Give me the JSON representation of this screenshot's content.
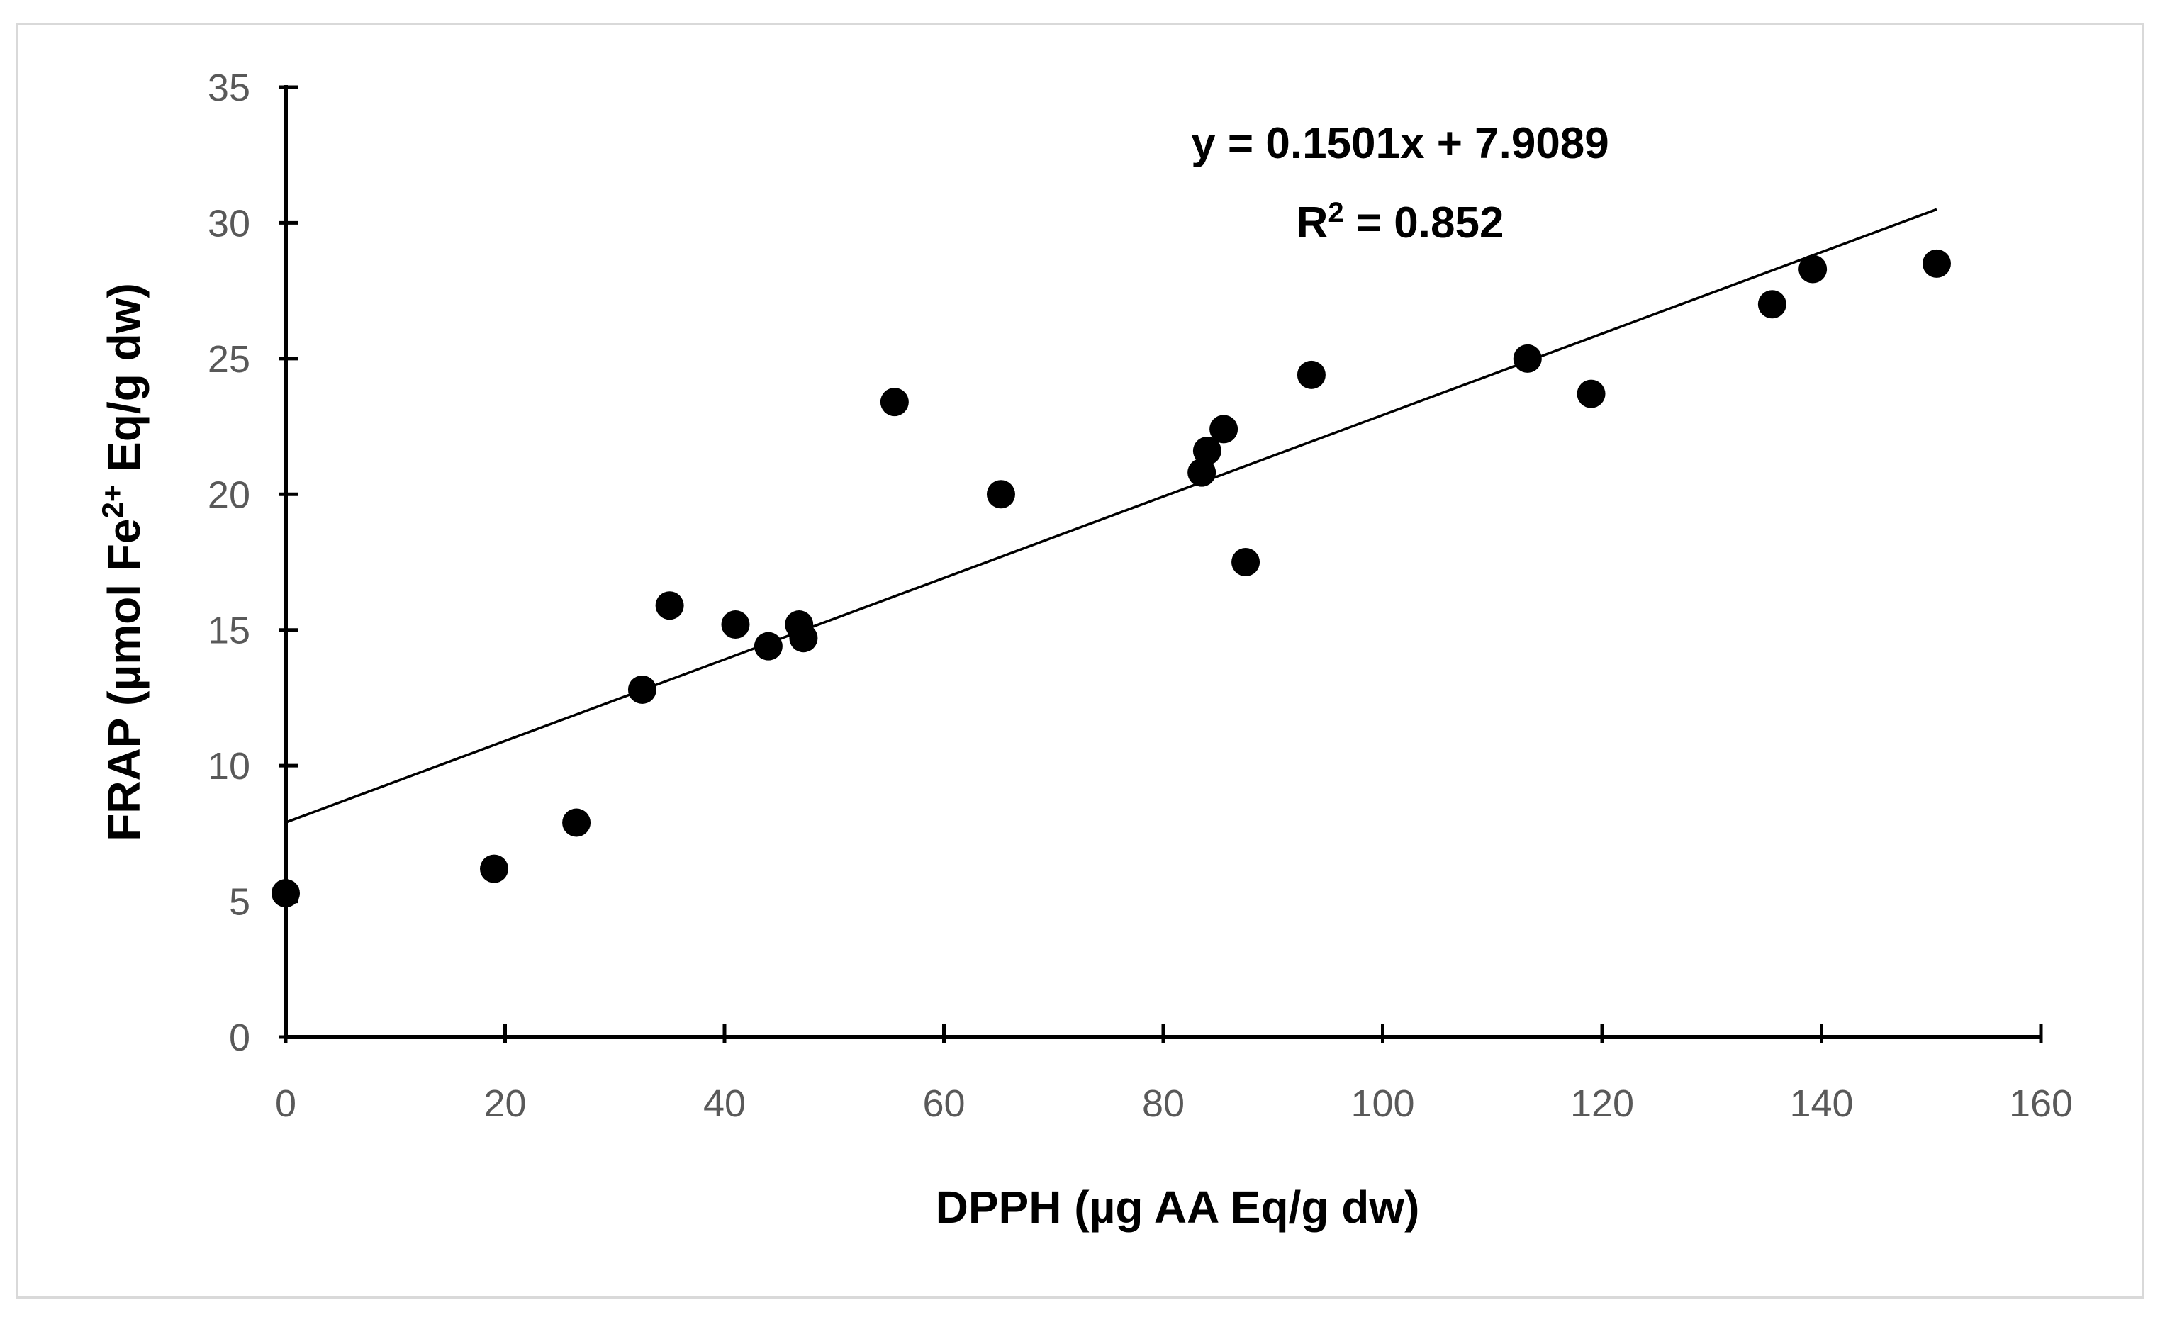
{
  "chart_data": {
    "type": "scatter",
    "title": "",
    "xlabel": "DPPH (µg AA Eq/g dw)",
    "ylabel_parts": [
      "FRAP (µmol Fe",
      "2+",
      " Eq/g dw)"
    ],
    "xlim": [
      0,
      160
    ],
    "ylim": [
      0,
      35
    ],
    "x_ticks": [
      0,
      20,
      40,
      60,
      80,
      100,
      120,
      140,
      160
    ],
    "y_ticks": [
      0,
      5,
      10,
      15,
      20,
      25,
      30,
      35
    ],
    "grid": false,
    "legend": "none",
    "marker_color": "#000000",
    "series": [
      {
        "points": [
          {
            "x": 0,
            "y": 5.3
          },
          {
            "x": 19,
            "y": 6.2
          },
          {
            "x": 26.5,
            "y": 7.9
          },
          {
            "x": 32.5,
            "y": 12.8
          },
          {
            "x": 35,
            "y": 15.9
          },
          {
            "x": 41,
            "y": 15.2
          },
          {
            "x": 44,
            "y": 14.4
          },
          {
            "x": 46.8,
            "y": 15.2
          },
          {
            "x": 47.2,
            "y": 14.7
          },
          {
            "x": 55.5,
            "y": 23.4
          },
          {
            "x": 65.2,
            "y": 20.0
          },
          {
            "x": 83.5,
            "y": 20.8
          },
          {
            "x": 84,
            "y": 21.6
          },
          {
            "x": 85.5,
            "y": 22.4
          },
          {
            "x": 87.5,
            "y": 17.5
          },
          {
            "x": 93.5,
            "y": 24.4
          },
          {
            "x": 113.2,
            "y": 25.0
          },
          {
            "x": 119,
            "y": 23.7
          },
          {
            "x": 135.5,
            "y": 27.0
          },
          {
            "x": 139.2,
            "y": 28.3
          },
          {
            "x": 150.5,
            "y": 28.5
          }
        ]
      }
    ],
    "trendline": {
      "slope": 0.1501,
      "intercept": 7.9089,
      "x_range": [
        0,
        150.5
      ],
      "color": "#000000"
    },
    "annotation": {
      "equation": "y = 0.1501x + 7.9089",
      "r2_prefix": "R",
      "r2_sup": "2",
      "r2_value": " = 0.852"
    }
  }
}
